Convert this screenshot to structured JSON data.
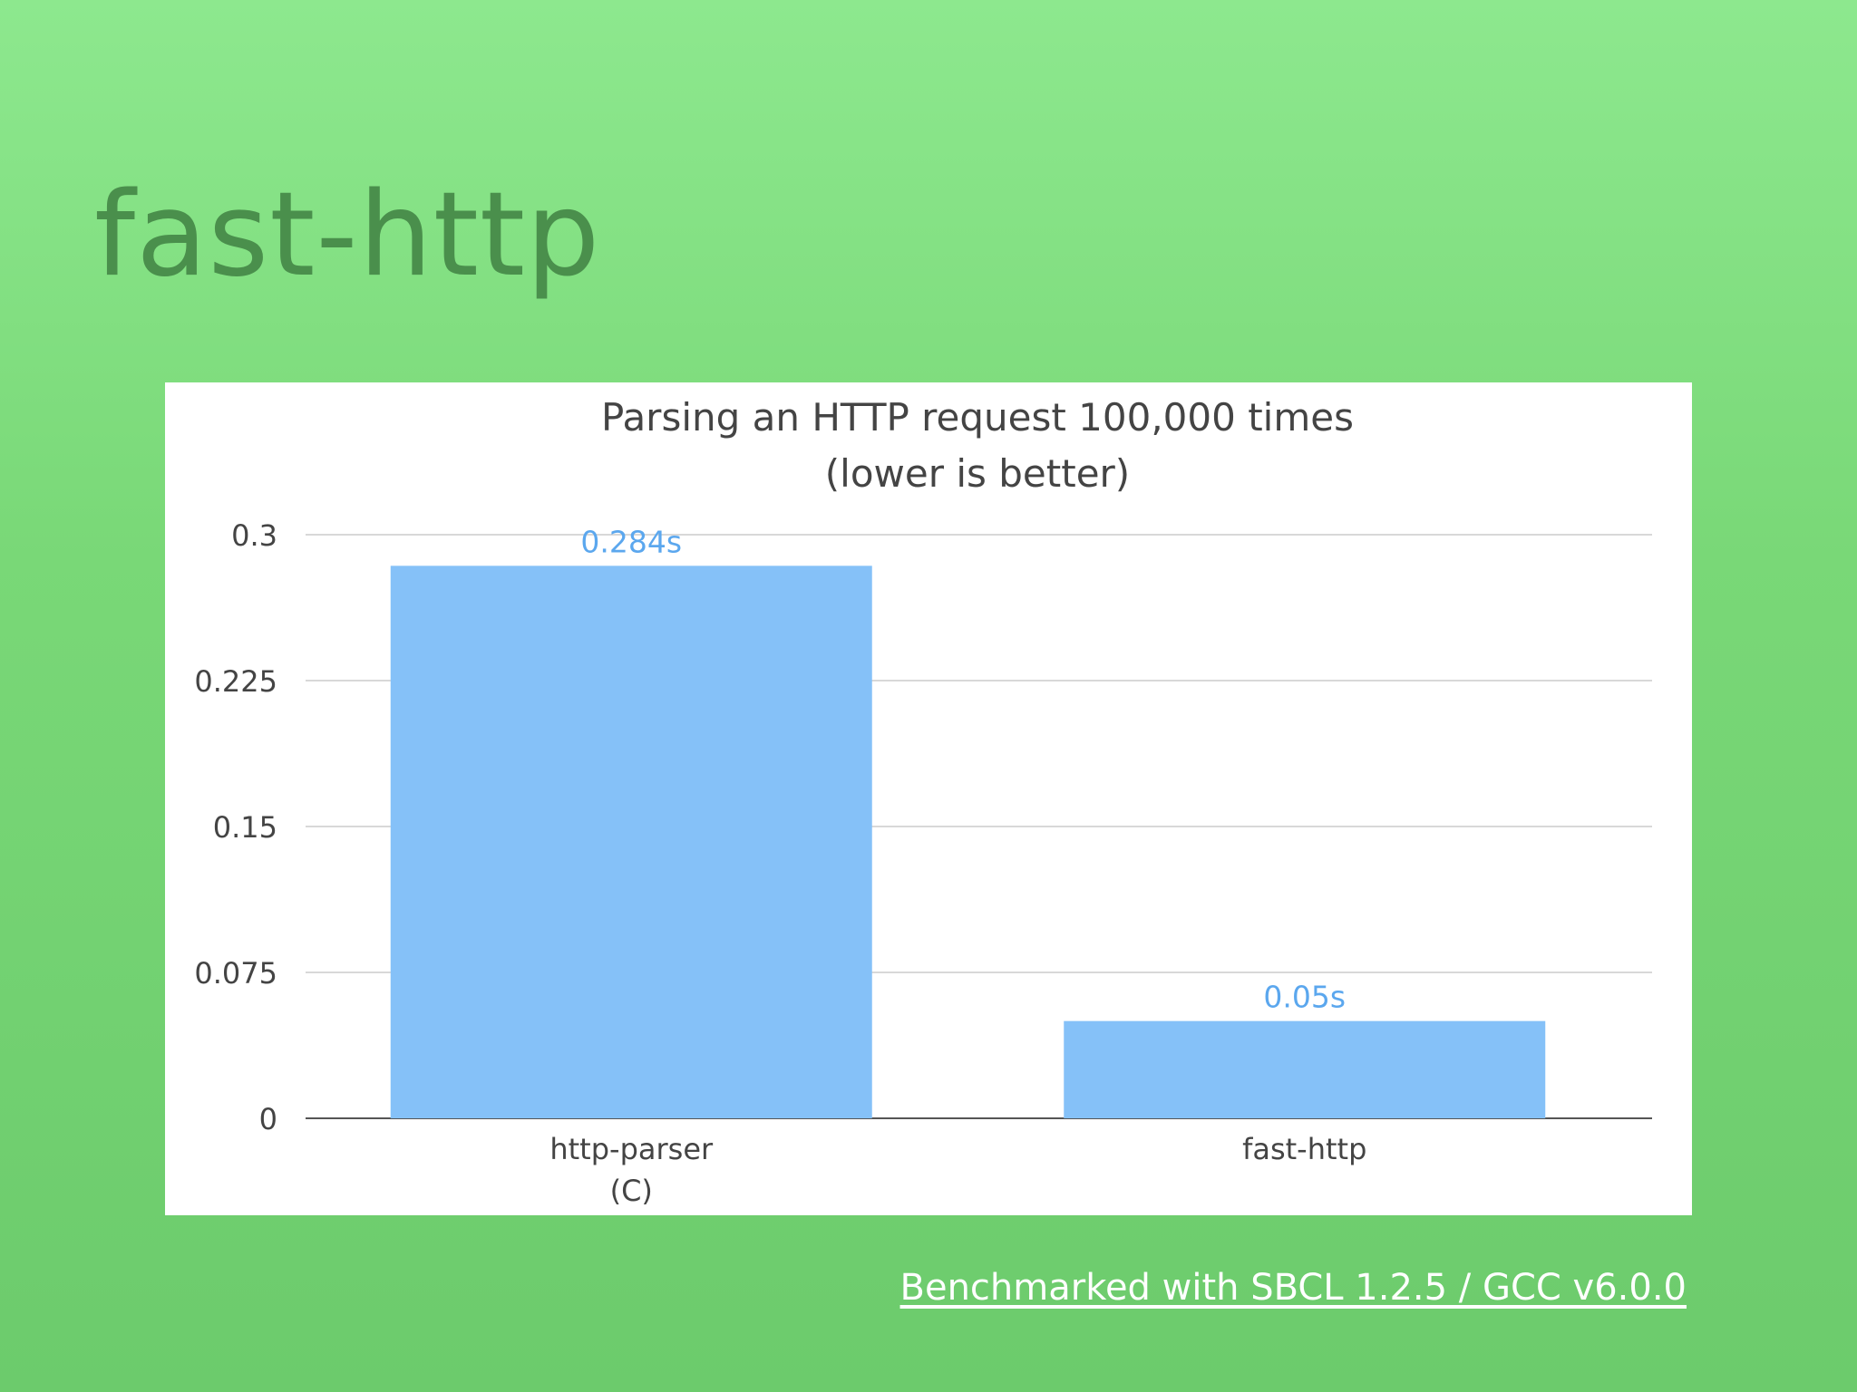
{
  "slide": {
    "title": "fast-http",
    "footer_link": "Benchmarked with SBCL 1.2.5 / GCC v6.0.0"
  },
  "colors": {
    "bar": "#85c1f8",
    "data_label": "#5ba7ee",
    "title_text": "#4a8f4c",
    "grid": "#cccccc",
    "axis_text": "#444444"
  },
  "chart_data": {
    "type": "bar",
    "title": "Parsing an HTTP request 100,000 times",
    "subtitle": "(lower is better)",
    "categories": [
      [
        "http-parser",
        "(C)"
      ],
      [
        "fast-http"
      ]
    ],
    "values": [
      0.284,
      0.05
    ],
    "data_labels": [
      "0.284s",
      "0.05s"
    ],
    "ylim": [
      0,
      0.3
    ],
    "yticks": [
      0,
      0.075,
      0.15,
      0.225,
      0.3
    ],
    "ytick_labels": [
      "0",
      "0.075",
      "0.15",
      "0.225",
      "0.3"
    ],
    "grid": true,
    "legend": "none"
  }
}
